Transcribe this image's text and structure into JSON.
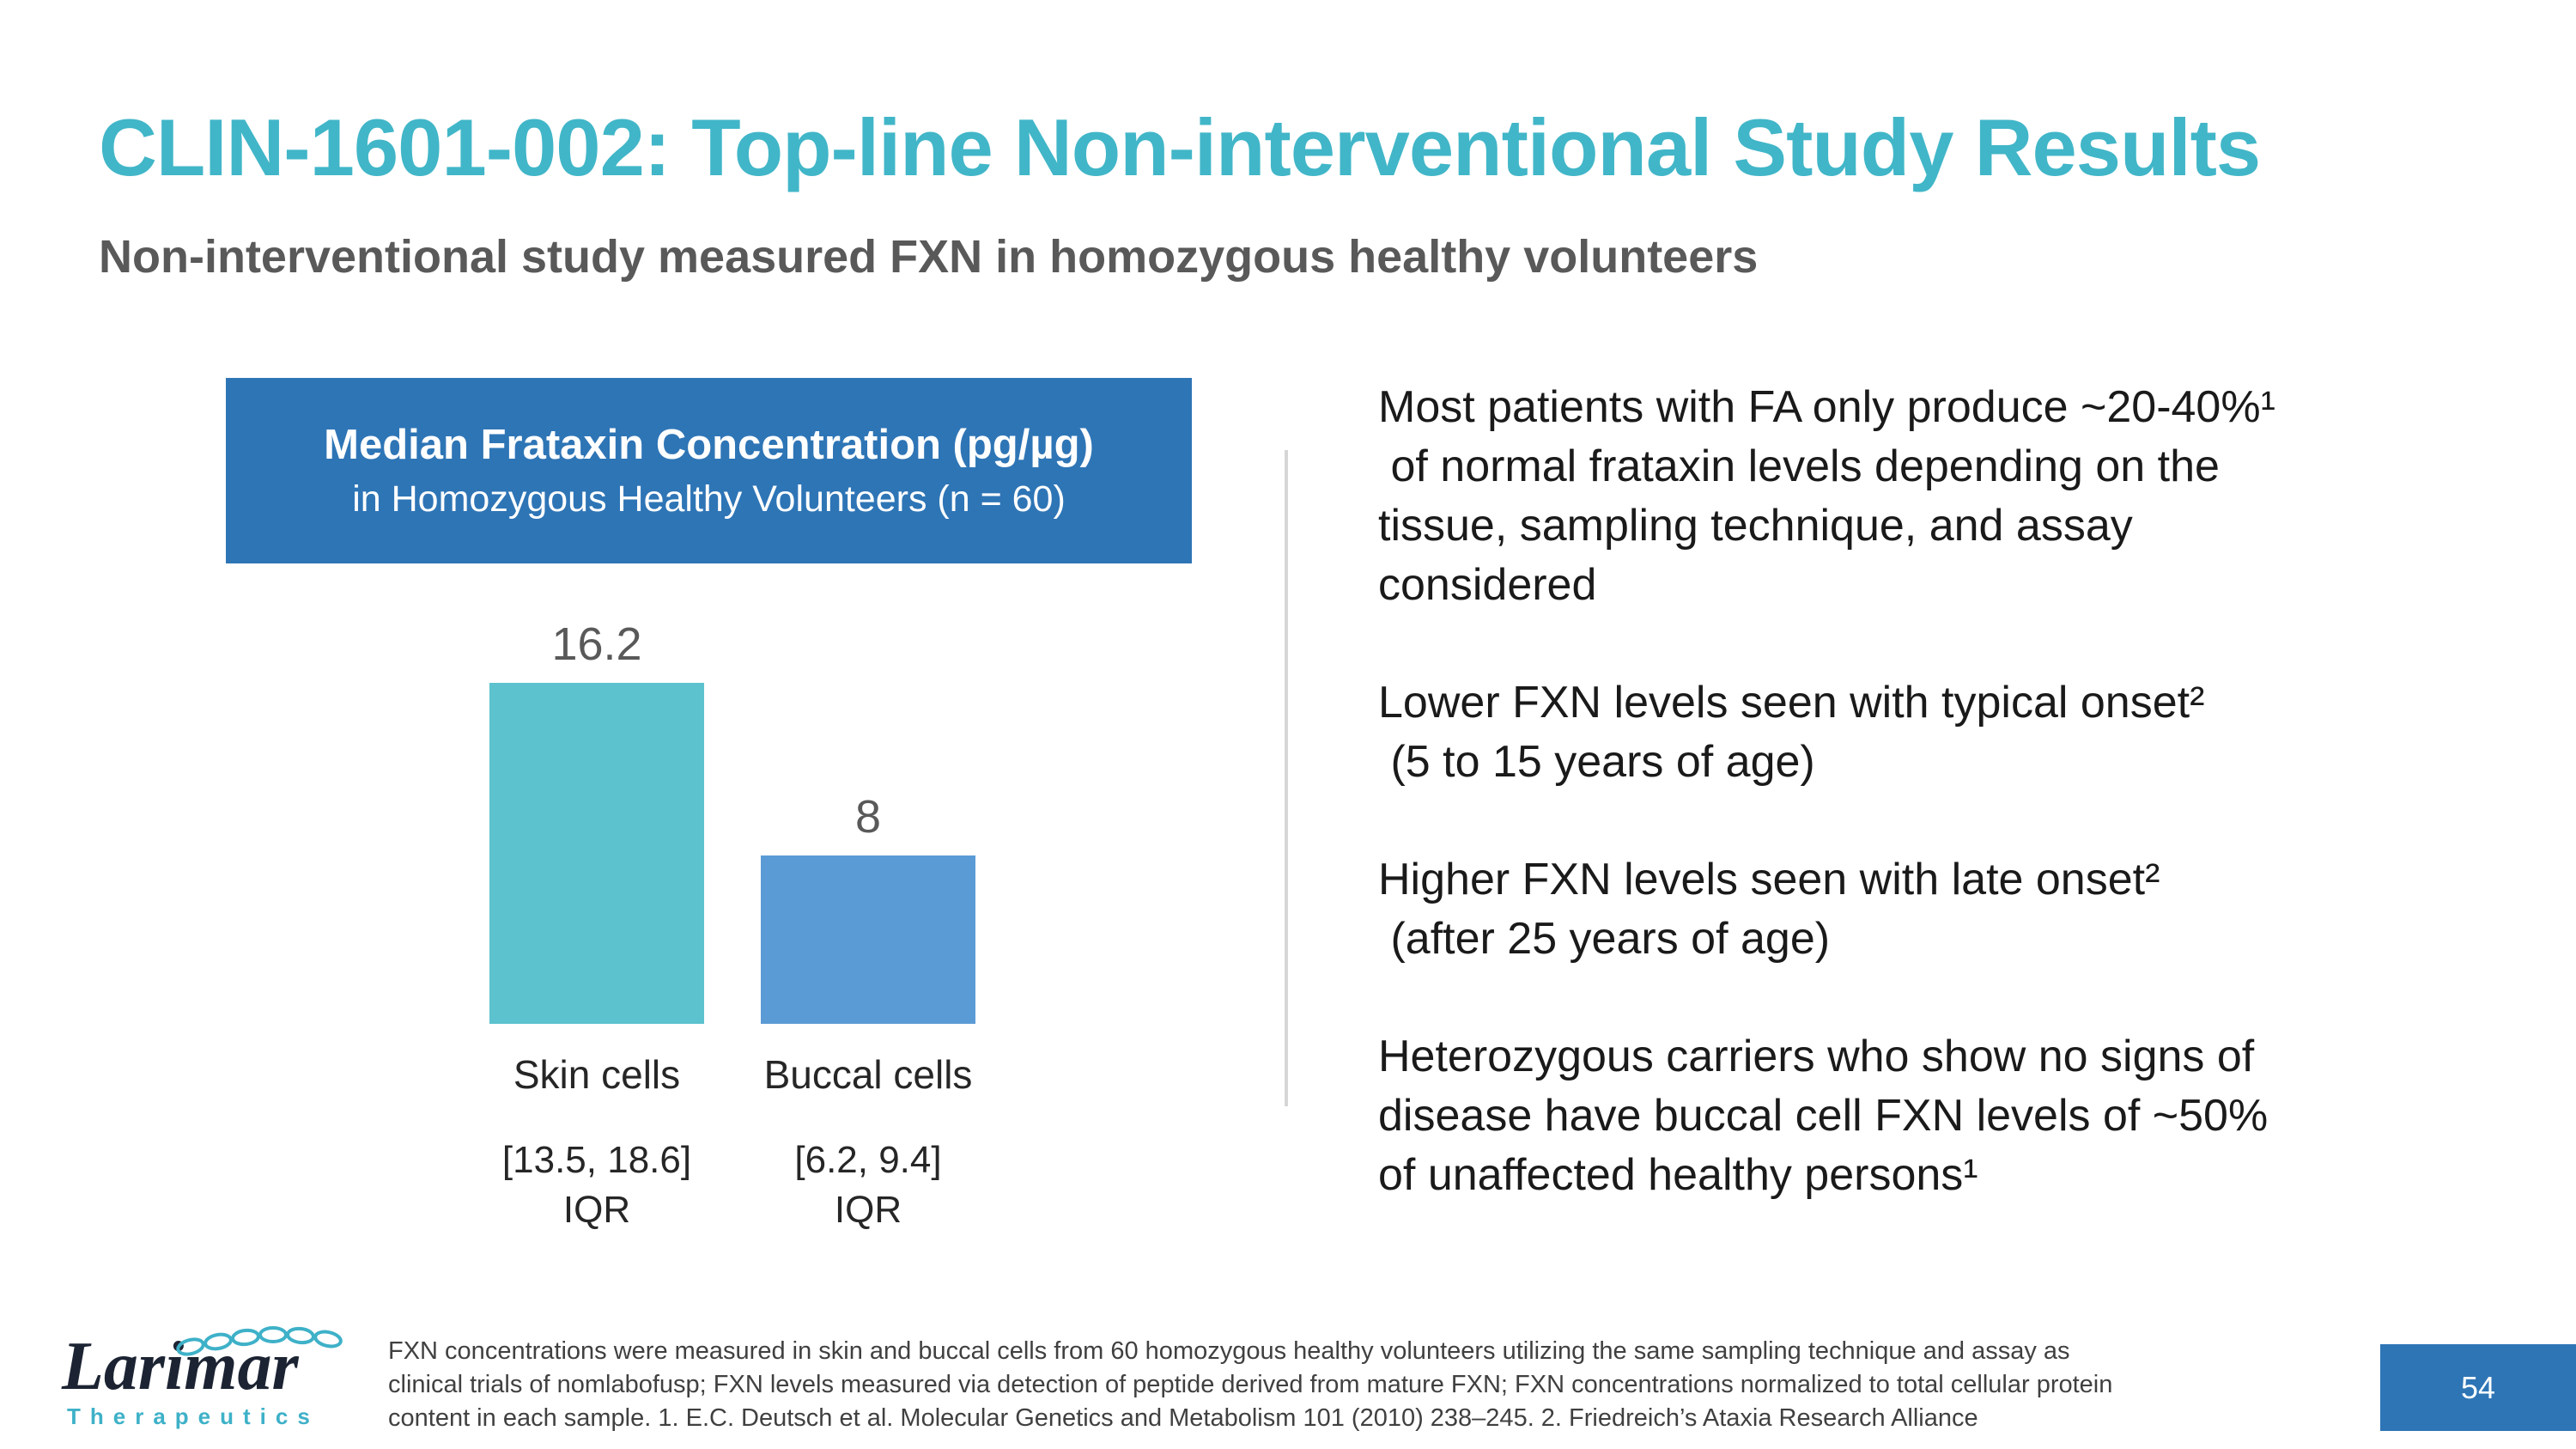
{
  "slide": {
    "title": "CLIN-1601-002: Top-line Non-interventional Study Results",
    "subtitle": "Non-interventional study measured FXN in homozygous healthy volunteers",
    "page_number": "54"
  },
  "colors": {
    "title_teal": "#41B6C8",
    "subtitle_gray": "#595959",
    "header_box_blue": "#2E75B6",
    "page_box_blue": "#2E75B6",
    "skin_bar_teal": "#5BC2CE",
    "buccal_bar_blue": "#5B9BD5"
  },
  "chart": {
    "header_title": "Median Frataxin Concentration (pg/µg)",
    "header_subtitle": "in Homozygous Healthy Volunteers (n = 60)"
  },
  "chart_data": {
    "type": "bar",
    "title": "Median Frataxin Concentration (pg/µg) in Homozygous Healthy Volunteers (n = 60)",
    "categories": [
      "Skin cells",
      "Buccal cells"
    ],
    "values": [
      16.2,
      8
    ],
    "value_labels": [
      "16.2",
      "8"
    ],
    "iqr_ranges": [
      "[13.5, 18.6]",
      "[6.2, 9.4]"
    ],
    "iqr_label": "IQR",
    "bar_colors": [
      "#5BC2CE",
      "#5B9BD5"
    ],
    "ylim": [
      0,
      17
    ],
    "unit": "pg/µg",
    "n": 60,
    "grid": false,
    "legend": "none",
    "value_axis_shown": false
  },
  "bullets": [
    "Most patients with FA only produce ~20-40%¹\n of normal frataxin levels depending on the\ntissue, sampling technique, and assay\nconsidered",
    "Lower FXN levels seen with typical onset²\n (5 to 15 years of age)",
    "Higher FXN levels seen with late onset²\n (after 25 years of age)",
    "Heterozygous carriers who show no signs of\ndisease have buccal cell FXN levels of ~50%\nof unaffected healthy persons¹"
  ],
  "footnote": "FXN concentrations were measured in skin and buccal cells from 60 homozygous healthy volunteers utilizing the same sampling technique and assay as\nclinical trials of nomlabofusp; FXN levels measured via detection of peptide derived from mature FXN; FXN concentrations normalized to total cellular protein\ncontent in each sample. 1. E.C. Deutsch et al. Molecular Genetics and Metabolism 101 (2010) 238–245. 2. Friedreich’s Ataxia Research Alliance",
  "logo": {
    "wordmark": "Larimar",
    "subtext": "Therapeutics"
  }
}
